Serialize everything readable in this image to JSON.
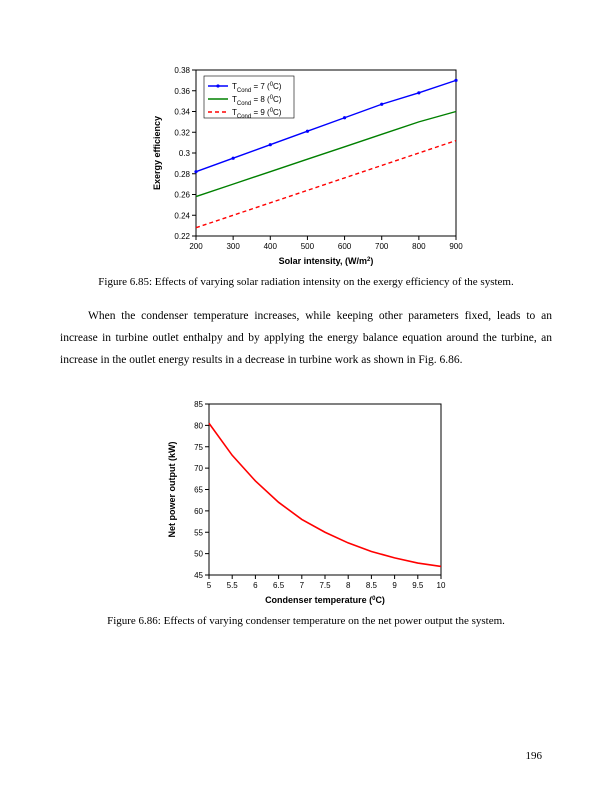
{
  "chart1": {
    "type": "line",
    "xlabel": "Solar intensity, (W/m²)",
    "ylabel": "Exergy efficiency",
    "xlim": [
      200,
      900
    ],
    "ylim": [
      0.22,
      0.38
    ],
    "xticks": [
      200,
      300,
      400,
      500,
      600,
      700,
      800,
      900
    ],
    "yticks": [
      0.22,
      0.24,
      0.26,
      0.28,
      0.3,
      0.32,
      0.34,
      0.36,
      0.38
    ],
    "label_fontsize": 9,
    "tick_fontsize": 8,
    "background_color": "#ffffff",
    "box_color": "#000000",
    "series": [
      {
        "label_prefix": "T",
        "label_sub": "Cond",
        "label_eq": " = 7 (",
        "label_unit_sup": "0",
        "label_unit": "C)",
        "color": "#0000ff",
        "dash": "none",
        "marker": "dot",
        "values_x": [
          200,
          300,
          400,
          500,
          600,
          700,
          800,
          900
        ],
        "values_y": [
          0.282,
          0.295,
          0.308,
          0.321,
          0.334,
          0.347,
          0.358,
          0.37
        ]
      },
      {
        "label_prefix": "T",
        "label_sub": "Cond",
        "label_eq": " = 8 (",
        "label_unit_sup": "0",
        "label_unit": "C)",
        "color": "#008000",
        "dash": "none",
        "marker": "none",
        "values_x": [
          200,
          300,
          400,
          500,
          600,
          700,
          800,
          900
        ],
        "values_y": [
          0.258,
          0.27,
          0.282,
          0.294,
          0.306,
          0.318,
          0.33,
          0.34
        ]
      },
      {
        "label_prefix": "T",
        "label_sub": "Cond",
        "label_eq": " = 9 (",
        "label_unit_sup": "0",
        "label_unit": "C)",
        "color": "#ff0000",
        "dash": "4,3",
        "marker": "none",
        "values_x": [
          200,
          300,
          400,
          500,
          600,
          700,
          800,
          900
        ],
        "values_y": [
          0.228,
          0.24,
          0.252,
          0.264,
          0.276,
          0.288,
          0.3,
          0.312
        ]
      }
    ]
  },
  "caption1": "Figure 6.85: Effects of varying solar radiation intensity on the exergy efficiency of the system.",
  "bodytext": "When the condenser temperature increases, while keeping other parameters fixed, leads to an increase in turbine outlet enthalpy and by applying the energy balance equation around the turbine, an increase in the outlet energy results in a decrease in turbine work as shown in Fig. 6.86.",
  "chart2": {
    "type": "line",
    "xlabel": "Condenser temperature (⁰C)",
    "ylabel": "Net power output (kW)",
    "xlim": [
      5,
      10
    ],
    "ylim": [
      45,
      85
    ],
    "xticks": [
      5,
      5.5,
      6,
      6.5,
      7,
      7.5,
      8,
      8.5,
      9,
      9.5,
      10
    ],
    "yticks": [
      45,
      50,
      55,
      60,
      65,
      70,
      75,
      80,
      85
    ],
    "label_fontsize": 9,
    "tick_fontsize": 8,
    "background_color": "#ffffff",
    "box_color": "#000000",
    "series": [
      {
        "color": "#ff0000",
        "dash": "none",
        "width": 1.6,
        "values_x": [
          5,
          5.5,
          6,
          6.5,
          7,
          7.5,
          8,
          8.5,
          9,
          9.5,
          10
        ],
        "values_y": [
          80.5,
          73.0,
          67.0,
          62.0,
          58.0,
          55.0,
          52.5,
          50.5,
          49.0,
          47.8,
          47.0
        ]
      }
    ]
  },
  "caption2": "Figure 6.86: Effects of varying condenser temperature on the net power output the system.",
  "page_number": "196"
}
